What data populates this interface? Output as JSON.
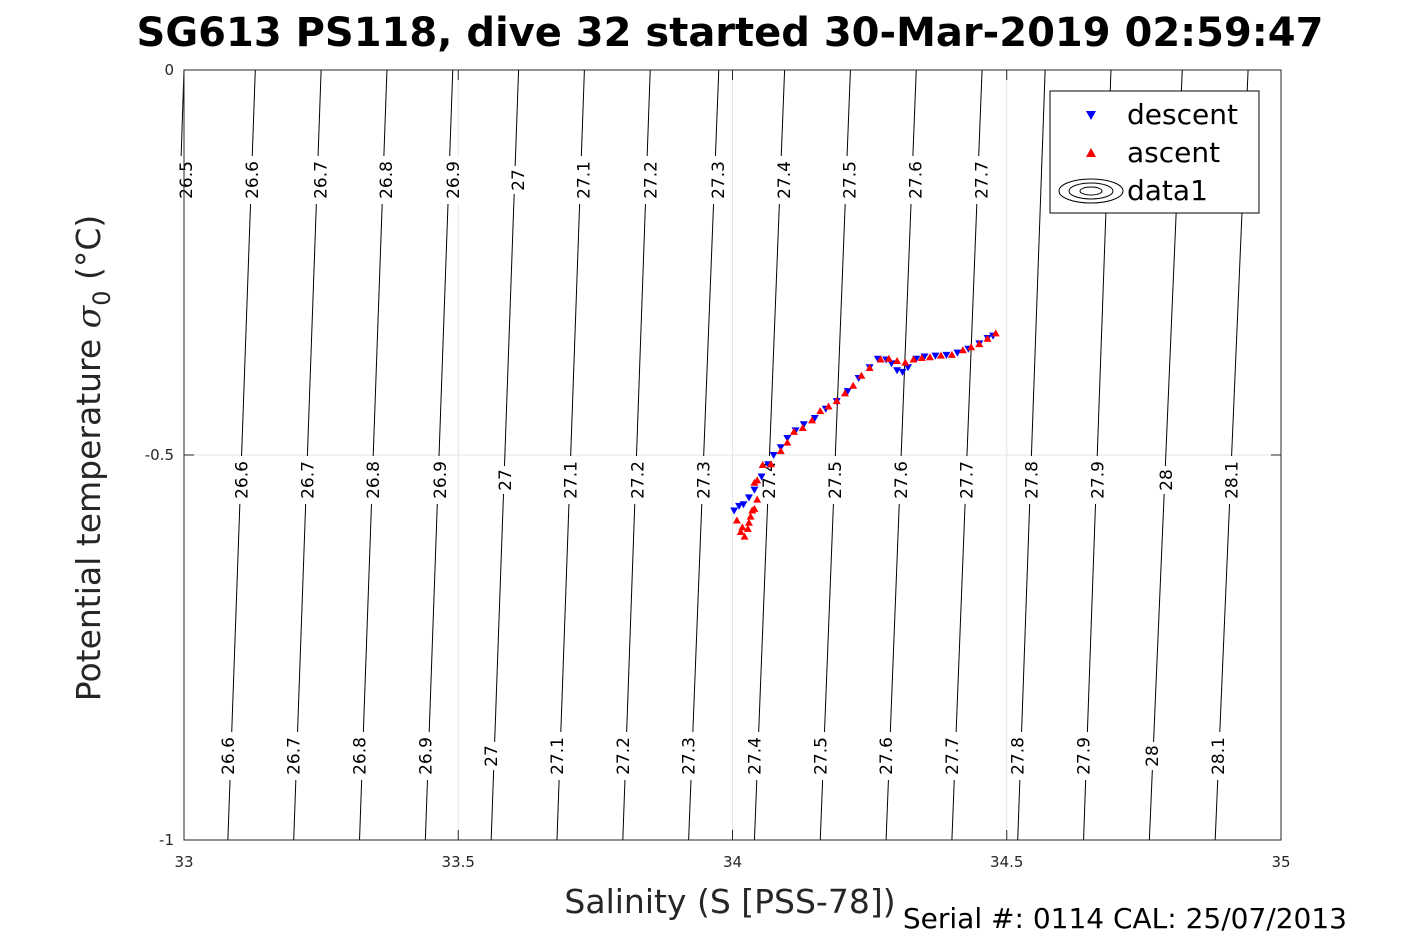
{
  "chart_data": {
    "type": "scatter",
    "title": "SG613 PS118, dive 32 started 30-Mar-2019 02:59:47",
    "xlabel": "Salinity (S [PSS-78])",
    "ylabel_main": "Potential temperature ",
    "ylabel_sigma": "σ",
    "ylabel_sub": "0",
    "ylabel_unit": " (°C)",
    "xlim": [
      33,
      35
    ],
    "ylim": [
      -1,
      0
    ],
    "xticks": [
      33,
      33.5,
      34,
      34.5,
      35
    ],
    "yticks": [
      -1,
      -0.5,
      0
    ],
    "xtick_labels": [
      "33",
      "33.5",
      "34",
      "34.5",
      "35"
    ],
    "ytick_labels": [
      "-1",
      "-0.5",
      "0"
    ],
    "grid": true,
    "legend_position": "top-right",
    "series": [
      {
        "name": "descent",
        "marker": "triangle-down",
        "color": "#0000ff",
        "points": [
          [
            34.003,
            -0.572
          ],
          [
            34.012,
            -0.566
          ],
          [
            34.02,
            -0.564
          ],
          [
            34.03,
            -0.555
          ],
          [
            34.04,
            -0.545
          ],
          [
            34.053,
            -0.528
          ],
          [
            34.065,
            -0.512
          ],
          [
            34.075,
            -0.5
          ],
          [
            34.088,
            -0.49
          ],
          [
            34.1,
            -0.478
          ],
          [
            34.115,
            -0.468
          ],
          [
            34.13,
            -0.46
          ],
          [
            34.15,
            -0.452
          ],
          [
            34.17,
            -0.44
          ],
          [
            34.19,
            -0.43
          ],
          [
            34.21,
            -0.417
          ],
          [
            34.23,
            -0.4
          ],
          [
            34.25,
            -0.386
          ],
          [
            34.265,
            -0.375
          ],
          [
            34.28,
            -0.376
          ],
          [
            34.29,
            -0.381
          ],
          [
            34.3,
            -0.39
          ],
          [
            34.31,
            -0.392
          ],
          [
            34.32,
            -0.386
          ],
          [
            34.335,
            -0.375
          ],
          [
            34.35,
            -0.372
          ],
          [
            34.37,
            -0.371
          ],
          [
            34.39,
            -0.37
          ],
          [
            34.41,
            -0.367
          ],
          [
            34.43,
            -0.362
          ],
          [
            34.45,
            -0.355
          ],
          [
            34.465,
            -0.348
          ],
          [
            34.475,
            -0.345
          ]
        ]
      },
      {
        "name": "ascent",
        "marker": "triangle-up",
        "color": "#ff0000",
        "points": [
          [
            34.008,
            -0.585
          ],
          [
            34.015,
            -0.6
          ],
          [
            34.022,
            -0.606
          ],
          [
            34.028,
            -0.596
          ],
          [
            34.033,
            -0.58
          ],
          [
            34.036,
            -0.572
          ],
          [
            34.03,
            -0.588
          ],
          [
            34.018,
            -0.594
          ],
          [
            34.04,
            -0.57
          ],
          [
            34.045,
            -0.558
          ],
          [
            34.04,
            -0.536
          ],
          [
            34.045,
            -0.533
          ],
          [
            34.055,
            -0.513
          ],
          [
            34.07,
            -0.512
          ],
          [
            34.088,
            -0.495
          ],
          [
            34.1,
            -0.484
          ],
          [
            34.112,
            -0.47
          ],
          [
            34.128,
            -0.465
          ],
          [
            34.145,
            -0.455
          ],
          [
            34.16,
            -0.443
          ],
          [
            34.175,
            -0.437
          ],
          [
            34.19,
            -0.43
          ],
          [
            34.205,
            -0.42
          ],
          [
            34.22,
            -0.41
          ],
          [
            34.235,
            -0.397
          ],
          [
            34.25,
            -0.387
          ],
          [
            34.27,
            -0.376
          ],
          [
            34.285,
            -0.375
          ],
          [
            34.3,
            -0.378
          ],
          [
            34.315,
            -0.38
          ],
          [
            34.33,
            -0.376
          ],
          [
            34.345,
            -0.374
          ],
          [
            34.36,
            -0.373
          ],
          [
            34.38,
            -0.371
          ],
          [
            34.4,
            -0.37
          ],
          [
            34.42,
            -0.364
          ],
          [
            34.435,
            -0.36
          ],
          [
            34.45,
            -0.356
          ],
          [
            34.465,
            -0.349
          ],
          [
            34.48,
            -0.342
          ]
        ]
      },
      {
        "name": "data1",
        "marker": "contour"
      }
    ],
    "contours": {
      "label_rows": [
        "0",
        "-0.5",
        "-1"
      ],
      "lines": [
        {
          "level": "26.5",
          "x_top": 33.0,
          "x_bot": null
        },
        {
          "level": "26.6",
          "x_top": 33.13,
          "x_bot": 33.08
        },
        {
          "level": "26.7",
          "x_top": 33.25,
          "x_bot": 33.2
        },
        {
          "level": "26.8",
          "x_top": 33.37,
          "x_bot": 33.32
        },
        {
          "level": "26.9",
          "x_top": 33.49,
          "x_bot": 33.44
        },
        {
          "level": "27",
          "x_top": 33.61,
          "x_bot": 33.56
        },
        {
          "level": "27.1",
          "x_top": 33.73,
          "x_bot": 33.68
        },
        {
          "level": "27.2",
          "x_top": 33.85,
          "x_bot": 33.8
        },
        {
          "level": "27.3",
          "x_top": 33.975,
          "x_bot": 33.92
        },
        {
          "level": "27.4",
          "x_top": 34.095,
          "x_bot": 34.04
        },
        {
          "level": "27.5",
          "x_top": 34.215,
          "x_bot": 34.16
        },
        {
          "level": "27.6",
          "x_top": 34.335,
          "x_bot": 34.28
        },
        {
          "level": "27.7",
          "x_top": 34.455,
          "x_bot": 34.4
        },
        {
          "level": "27.8",
          "x_top": 34.57,
          "x_bot": 34.52
        },
        {
          "level": "27.9",
          "x_top": 34.69,
          "x_bot": 34.64
        },
        {
          "level": "28",
          "x_top": 34.82,
          "x_bot": 34.76
        },
        {
          "level": "28.1",
          "x_top": 34.94,
          "x_bot": 34.88
        }
      ],
      "labels": [
        {
          "text": "26.5",
          "x": 33.0,
          "y": 0
        },
        {
          "text": "26.6",
          "x": 33.12,
          "y": 0
        },
        {
          "text": "26.7",
          "x": 33.245,
          "y": 0
        },
        {
          "text": "26.8",
          "x": 33.365,
          "y": 0
        },
        {
          "text": "26.9",
          "x": 33.487,
          "y": 0
        },
        {
          "text": "27",
          "x": 33.605,
          "y": 0
        },
        {
          "text": "27.1",
          "x": 33.725,
          "y": 0
        },
        {
          "text": "27.2",
          "x": 33.847,
          "y": 0
        },
        {
          "text": "27.3",
          "x": 33.97,
          "y": 0
        },
        {
          "text": "27.4",
          "x": 34.09,
          "y": 0
        },
        {
          "text": "27.5",
          "x": 34.21,
          "y": 0
        },
        {
          "text": "27.6",
          "x": 34.33,
          "y": 0
        },
        {
          "text": "27.7",
          "x": 34.45,
          "y": 0
        },
        {
          "text": "28.1",
          "x": 34.94,
          "y": 0
        },
        {
          "text": "26.6",
          "x": 33.105,
          "y": -0.5
        },
        {
          "text": "26.7",
          "x": 33.225,
          "y": -0.5
        },
        {
          "text": "26.8",
          "x": 33.345,
          "y": -0.5
        },
        {
          "text": "26.9",
          "x": 33.467,
          "y": -0.5
        },
        {
          "text": "27",
          "x": 33.585,
          "y": -0.5
        },
        {
          "text": "27.1",
          "x": 33.705,
          "y": -0.5
        },
        {
          "text": "27.2",
          "x": 33.827,
          "y": -0.5
        },
        {
          "text": "27.3",
          "x": 33.947,
          "y": -0.5
        },
        {
          "text": "27.4",
          "x": 34.067,
          "y": -0.5
        },
        {
          "text": "27.5",
          "x": 34.187,
          "y": -0.5
        },
        {
          "text": "27.6",
          "x": 34.307,
          "y": -0.5
        },
        {
          "text": "27.7",
          "x": 34.427,
          "y": -0.5
        },
        {
          "text": "27.8",
          "x": 34.545,
          "y": -0.5
        },
        {
          "text": "27.9",
          "x": 34.665,
          "y": -0.5
        },
        {
          "text": "28",
          "x": 34.79,
          "y": -0.5
        },
        {
          "text": "28.1",
          "x": 34.91,
          "y": -0.5
        },
        {
          "text": "26.6",
          "x": 33.08,
          "y": -0.9
        },
        {
          "text": "26.7",
          "x": 33.2,
          "y": -0.9
        },
        {
          "text": "26.8",
          "x": 33.32,
          "y": -0.9
        },
        {
          "text": "26.9",
          "x": 33.44,
          "y": -0.9
        },
        {
          "text": "27",
          "x": 33.56,
          "y": -0.9
        },
        {
          "text": "27.1",
          "x": 33.68,
          "y": -0.9
        },
        {
          "text": "27.2",
          "x": 33.8,
          "y": -0.9
        },
        {
          "text": "27.3",
          "x": 33.92,
          "y": -0.9
        },
        {
          "text": "27.4",
          "x": 34.04,
          "y": -0.9
        },
        {
          "text": "27.5",
          "x": 34.16,
          "y": -0.9
        },
        {
          "text": "27.6",
          "x": 34.28,
          "y": -0.9
        },
        {
          "text": "27.7",
          "x": 34.4,
          "y": -0.9
        },
        {
          "text": "27.8",
          "x": 34.52,
          "y": -0.9
        },
        {
          "text": "27.9",
          "x": 34.64,
          "y": -0.9
        },
        {
          "text": "28",
          "x": 34.765,
          "y": -0.9
        },
        {
          "text": "28.1",
          "x": 34.885,
          "y": -0.9
        }
      ]
    }
  },
  "footer": {
    "serial": "Serial #: 0114  CAL: 25/07/2013"
  }
}
